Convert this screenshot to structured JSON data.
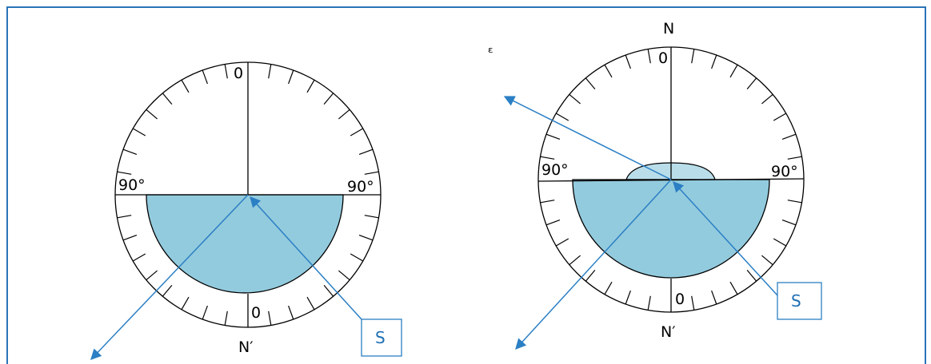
{
  "frame": {
    "border_color": "#2a74b8"
  },
  "colors": {
    "glass": "#93cbde",
    "glass_light": "#b9deea",
    "ray": "#2b7fc4",
    "ink": "#000000"
  },
  "left_diagram": {
    "top_zero": "0",
    "bottom_zero": "0",
    "left_90": "90°",
    "right_90": "90°",
    "bottom_label": "N′",
    "source_label": "S"
  },
  "right_diagram": {
    "top_label": "N",
    "top_zero": "0",
    "bottom_zero": "0",
    "left_90": "90°",
    "right_90": "90°",
    "bottom_label": "N′",
    "source_label": "S"
  },
  "stray_mark": "ᵋ"
}
